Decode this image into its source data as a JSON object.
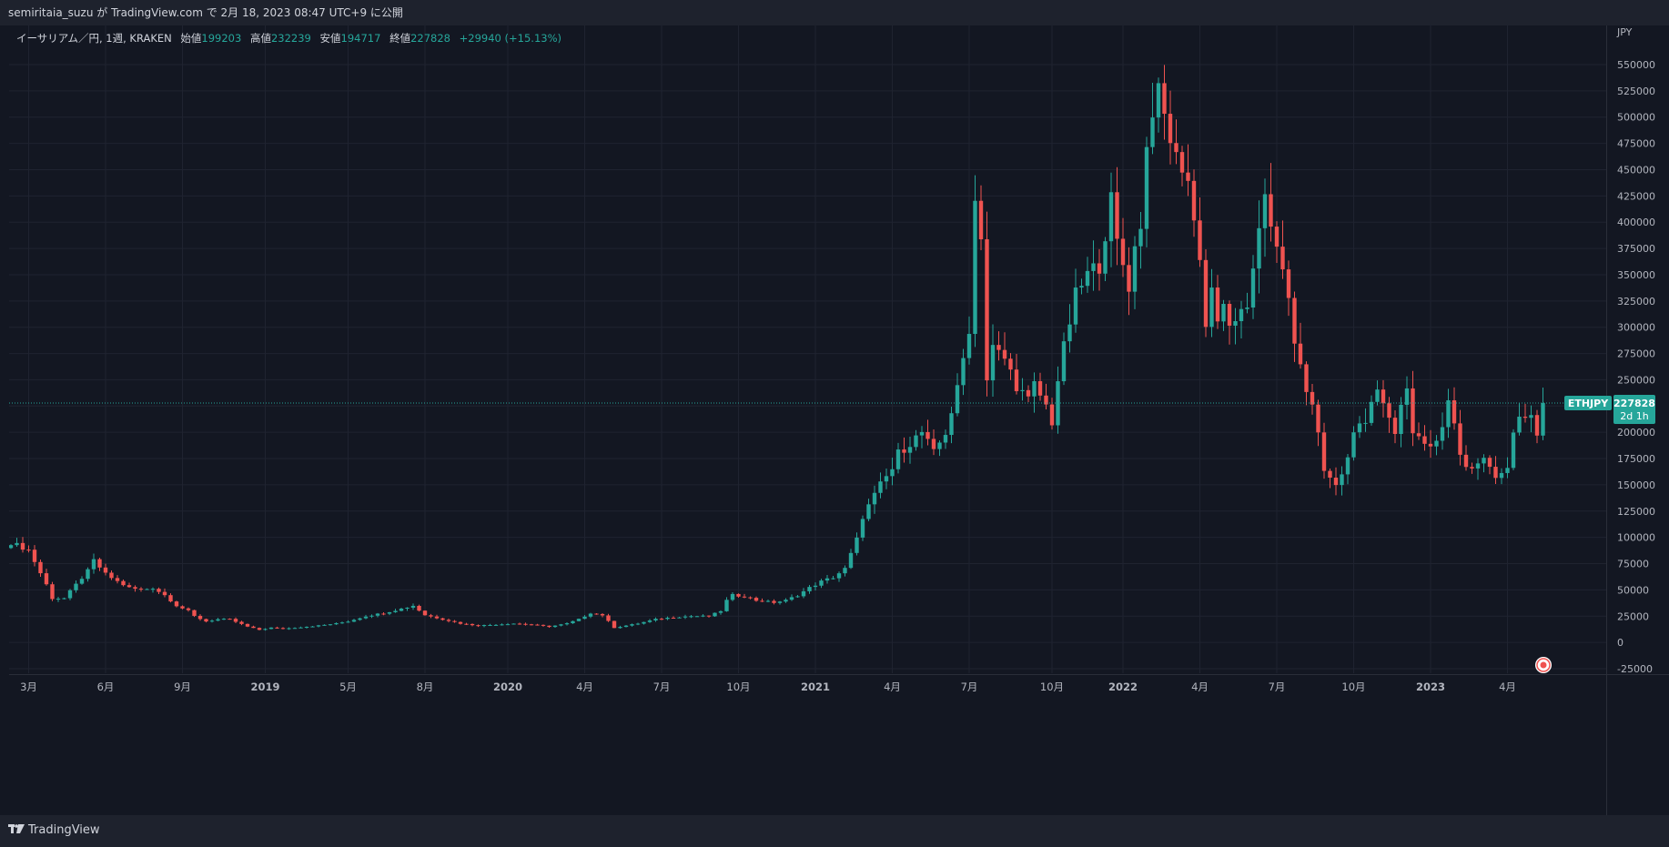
{
  "header": {
    "publisher": "semiritaia_suzu が TradingView.com で 2月 18, 2023 08:47 UTC+9 に公開"
  },
  "legend": {
    "symbol": "イーサリアム／円, 1週, KRAKEN",
    "open_label": "始値",
    "open": "199203",
    "high_label": "高値",
    "high": "232239",
    "low_label": "安値",
    "low": "194717",
    "close_label": "終値",
    "close": "227828",
    "change": "+29940 (+15.13%)"
  },
  "price_tag": {
    "symbol": "ETHJPY",
    "price": "227828",
    "countdown": "2d 1h"
  },
  "footer": {
    "brand": "TradingView",
    "logo_icon": "tradingview-logo-icon"
  },
  "colors": {
    "up": "#26a69a",
    "down": "#ef5350",
    "background": "#131722",
    "grid": "#1f2330",
    "axis_text": "#b2b5be"
  },
  "chart_data": {
    "type": "candlestick",
    "symbol": "ETHJPY",
    "interval": "1週",
    "currency": "JPY",
    "ylim": [
      -25000,
      550000
    ],
    "y_ticks": [
      550000,
      525000,
      500000,
      475000,
      450000,
      425000,
      400000,
      375000,
      350000,
      325000,
      300000,
      275000,
      250000,
      225000,
      200000,
      175000,
      150000,
      125000,
      100000,
      75000,
      50000,
      25000,
      0,
      -25000
    ],
    "x_tick_labels": [
      "3月",
      "6月",
      "9月",
      "2019",
      "5月",
      "8月",
      "2020",
      "4月",
      "7月",
      "10月",
      "2021",
      "4月",
      "7月",
      "10月",
      "2022",
      "4月",
      "7月",
      "10月",
      "2023",
      "4月"
    ],
    "x_tick_bold": [
      false,
      false,
      false,
      true,
      false,
      false,
      true,
      false,
      false,
      false,
      true,
      false,
      false,
      false,
      true,
      false,
      false,
      false,
      true,
      false
    ],
    "x_tick_index": [
      3,
      16,
      29,
      43,
      57,
      70,
      84,
      97,
      110,
      123,
      136,
      149,
      162,
      176,
      188,
      201,
      214,
      227,
      240,
      253
    ],
    "last_price": 227828,
    "grid": true,
    "close_path": [
      [
        0,
        95000
      ],
      [
        3,
        88000
      ],
      [
        6,
        55000
      ],
      [
        7,
        42000
      ],
      [
        9,
        42000
      ],
      [
        11,
        55000
      ],
      [
        13,
        68000
      ],
      [
        14,
        78000
      ],
      [
        16,
        65000
      ],
      [
        18,
        58000
      ],
      [
        20,
        52000
      ],
      [
        22,
        50000
      ],
      [
        24,
        52000
      ],
      [
        26,
        45000
      ],
      [
        28,
        35000
      ],
      [
        30,
        30000
      ],
      [
        31,
        25000
      ],
      [
        33,
        20000
      ],
      [
        35,
        22000
      ],
      [
        37,
        22000
      ],
      [
        40,
        15000
      ],
      [
        42,
        12000
      ],
      [
        44,
        14000
      ],
      [
        46,
        13000
      ],
      [
        48,
        14000
      ],
      [
        50,
        15000
      ],
      [
        52,
        16000
      ],
      [
        55,
        18000
      ],
      [
        57,
        20000
      ],
      [
        60,
        25000
      ],
      [
        63,
        28000
      ],
      [
        66,
        32000
      ],
      [
        68,
        35000
      ],
      [
        70,
        26000
      ],
      [
        73,
        22000
      ],
      [
        76,
        18000
      ],
      [
        79,
        16000
      ],
      [
        82,
        17000
      ],
      [
        85,
        18000
      ],
      [
        88,
        17000
      ],
      [
        91,
        15000
      ],
      [
        94,
        18000
      ],
      [
        96,
        22000
      ],
      [
        98,
        28000
      ],
      [
        100,
        26000
      ],
      [
        102,
        14000
      ],
      [
        104,
        16000
      ],
      [
        106,
        18000
      ],
      [
        109,
        22000
      ],
      [
        112,
        24000
      ],
      [
        115,
        25000
      ],
      [
        118,
        25000
      ],
      [
        120,
        30000
      ],
      [
        121,
        40000
      ],
      [
        122,
        45000
      ],
      [
        124,
        44000
      ],
      [
        126,
        40000
      ],
      [
        129,
        38000
      ],
      [
        131,
        40000
      ],
      [
        133,
        45000
      ],
      [
        135,
        52000
      ],
      [
        137,
        58000
      ],
      [
        139,
        62000
      ],
      [
        141,
        70000
      ],
      [
        143,
        98000
      ],
      [
        144,
        120000
      ],
      [
        146,
        140000
      ],
      [
        147,
        150000
      ],
      [
        149,
        165000
      ],
      [
        150,
        180000
      ],
      [
        152,
        190000
      ],
      [
        154,
        200000
      ],
      [
        156,
        180000
      ],
      [
        158,
        200000
      ],
      [
        159,
        220000
      ],
      [
        160,
        240000
      ],
      [
        162,
        300000
      ],
      [
        163,
        420000
      ],
      [
        164,
        390000
      ],
      [
        165,
        250000
      ],
      [
        166,
        280000
      ],
      [
        168,
        270000
      ],
      [
        170,
        245000
      ],
      [
        172,
        230000
      ],
      [
        173,
        245000
      ],
      [
        175,
        225000
      ],
      [
        176,
        210000
      ],
      [
        177,
        250000
      ],
      [
        178,
        280000
      ],
      [
        180,
        330000
      ],
      [
        182,
        350000
      ],
      [
        184,
        360000
      ],
      [
        186,
        420000
      ],
      [
        187,
        380000
      ],
      [
        188,
        360000
      ],
      [
        189,
        340000
      ],
      [
        190,
        375000
      ],
      [
        191,
        400000
      ],
      [
        192,
        470000
      ],
      [
        193,
        510000
      ],
      [
        194,
        520000
      ],
      [
        195,
        500000
      ],
      [
        196,
        480000
      ],
      [
        197,
        460000
      ],
      [
        198,
        455000
      ],
      [
        199,
        440000
      ],
      [
        200,
        400000
      ],
      [
        201,
        370000
      ],
      [
        202,
        300000
      ],
      [
        203,
        340000
      ],
      [
        204,
        300000
      ],
      [
        205,
        320000
      ],
      [
        206,
        305000
      ],
      [
        207,
        300000
      ],
      [
        209,
        320000
      ],
      [
        210,
        360000
      ],
      [
        211,
        400000
      ],
      [
        212,
        420000
      ],
      [
        213,
        390000
      ],
      [
        214,
        375000
      ],
      [
        215,
        360000
      ],
      [
        216,
        320000
      ],
      [
        217,
        290000
      ],
      [
        218,
        260000
      ],
      [
        219,
        240000
      ],
      [
        220,
        225000
      ],
      [
        221,
        200000
      ],
      [
        222,
        165000
      ],
      [
        223,
        155000
      ],
      [
        224,
        150000
      ],
      [
        225,
        160000
      ],
      [
        226,
        180000
      ],
      [
        227,
        200000
      ],
      [
        228,
        205000
      ],
      [
        229,
        210000
      ],
      [
        230,
        225000
      ],
      [
        231,
        240000
      ],
      [
        232,
        225000
      ],
      [
        233,
        215000
      ],
      [
        234,
        200000
      ],
      [
        235,
        225000
      ],
      [
        236,
        245000
      ],
      [
        237,
        200000
      ],
      [
        238,
        195000
      ],
      [
        239,
        190000
      ],
      [
        240,
        185000
      ],
      [
        241,
        190000
      ],
      [
        242,
        205000
      ],
      [
        243,
        235000
      ],
      [
        244,
        210000
      ],
      [
        245,
        180000
      ],
      [
        246,
        165000
      ],
      [
        247,
        162000
      ],
      [
        248,
        170000
      ],
      [
        249,
        175000
      ],
      [
        250,
        165000
      ],
      [
        251,
        158000
      ],
      [
        252,
        160000
      ],
      [
        253,
        170000
      ],
      [
        254,
        195000
      ],
      [
        255,
        210000
      ],
      [
        256,
        210000
      ],
      [
        257,
        218000
      ],
      [
        258,
        200000
      ],
      [
        259,
        227828
      ]
    ]
  }
}
